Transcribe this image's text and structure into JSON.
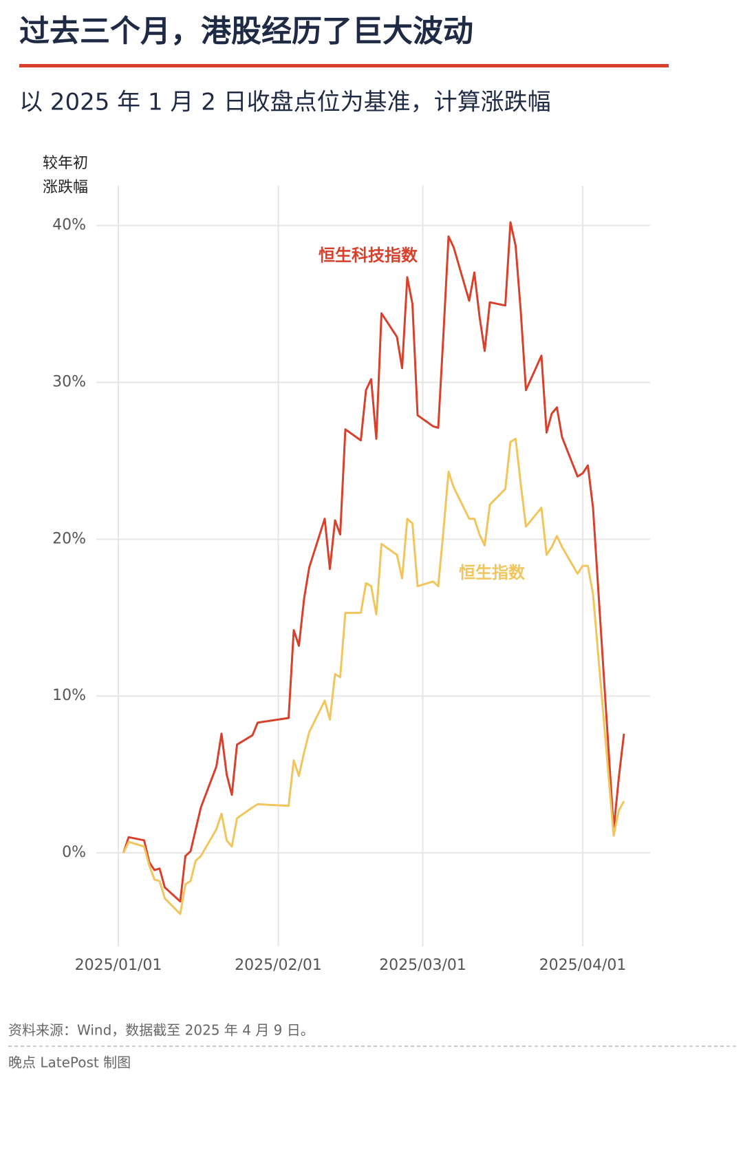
{
  "chart_data": {
    "type": "line",
    "title": "过去三个月，港股经历了巨大波动",
    "subtitle": "以 2025 年 1 月 2 日收盘点位为基准，计算涨跌幅",
    "y_label": [
      "较年初",
      "涨跌幅"
    ],
    "source": "资料来源：Wind，数据截至 2025 年 4 月 9 日。",
    "credit": "晚点 LatePost 制图",
    "x": [
      "2025/01/02",
      "2025/01/03",
      "2025/01/06",
      "2025/01/07",
      "2025/01/08",
      "2025/01/09",
      "2025/01/10",
      "2025/01/13",
      "2025/01/14",
      "2025/01/15",
      "2025/01/16",
      "2025/01/17",
      "2025/01/20",
      "2025/01/21",
      "2025/01/22",
      "2025/01/23",
      "2025/01/24",
      "2025/01/27",
      "2025/01/28",
      "2025/02/03",
      "2025/02/04",
      "2025/02/05",
      "2025/02/06",
      "2025/02/07",
      "2025/02/10",
      "2025/02/11",
      "2025/02/12",
      "2025/02/13",
      "2025/02/14",
      "2025/02/17",
      "2025/02/18",
      "2025/02/19",
      "2025/02/20",
      "2025/02/21",
      "2025/02/24",
      "2025/02/25",
      "2025/02/26",
      "2025/02/27",
      "2025/02/28",
      "2025/03/03",
      "2025/03/04",
      "2025/03/05",
      "2025/03/06",
      "2025/03/07",
      "2025/03/10",
      "2025/03/11",
      "2025/03/12",
      "2025/03/13",
      "2025/03/14",
      "2025/03/17",
      "2025/03/18",
      "2025/03/19",
      "2025/03/20",
      "2025/03/21",
      "2025/03/24",
      "2025/03/25",
      "2025/03/26",
      "2025/03/27",
      "2025/03/28",
      "2025/03/31",
      "2025/04/01",
      "2025/04/02",
      "2025/04/03",
      "2025/04/07",
      "2025/04/08",
      "2025/04/09"
    ],
    "series": [
      {
        "name": "恒生科技指数",
        "color": "#d9402b",
        "values": [
          0,
          1.0,
          0.8,
          -0.6,
          -1.1,
          -1.0,
          -2.2,
          -3.1,
          -0.2,
          0.1,
          1.5,
          2.9,
          5.5,
          7.6,
          5.0,
          3.7,
          6.9,
          7.5,
          8.3,
          8.6,
          14.2,
          13.2,
          16.2,
          18.2,
          21.3,
          18.1,
          21.2,
          20.3,
          27.0,
          26.3,
          29.5,
          30.2,
          26.4,
          34.4,
          32.9,
          30.9,
          36.7,
          35.0,
          27.9,
          27.2,
          27.1,
          33.0,
          39.3,
          38.6,
          35.2,
          37.0,
          34.2,
          32.0,
          35.1,
          34.9,
          40.2,
          38.7,
          34.5,
          29.5,
          31.7,
          26.8,
          28.0,
          28.4,
          26.5,
          24.0,
          24.2,
          24.7,
          22.0,
          1.5,
          4.8,
          7.6
        ]
      },
      {
        "name": "恒生指数",
        "color": "#f2c55c",
        "values": [
          0,
          0.7,
          0.4,
          -0.8,
          -1.7,
          -1.8,
          -2.9,
          -3.9,
          -2.0,
          -1.8,
          -0.5,
          -0.2,
          1.5,
          2.5,
          0.8,
          0.4,
          2.2,
          2.9,
          3.1,
          3.0,
          5.9,
          4.9,
          6.4,
          7.7,
          9.7,
          8.5,
          11.4,
          11.2,
          15.3,
          15.3,
          17.2,
          17.0,
          15.2,
          19.7,
          19.0,
          17.5,
          21.3,
          21.0,
          17.0,
          17.3,
          17.0,
          20.5,
          24.3,
          23.3,
          21.3,
          21.3,
          20.3,
          19.6,
          22.2,
          23.2,
          26.2,
          26.4,
          23.5,
          20.8,
          22.0,
          19.0,
          19.5,
          20.2,
          19.5,
          17.8,
          18.3,
          18.3,
          16.5,
          1.1,
          2.7,
          3.3
        ]
      }
    ],
    "xlim": [
      "2025/01/01",
      "2025/04/09"
    ],
    "xticks": [
      "2025/01/01",
      "2025/02/01",
      "2025/03/01",
      "2025/04/01"
    ],
    "ylim": [
      -5,
      42
    ],
    "yticks": [
      {
        "value": 0,
        "label": "0%"
      },
      {
        "value": 10,
        "label": "10%"
      },
      {
        "value": 20,
        "label": "20%"
      },
      {
        "value": 30,
        "label": "30%"
      },
      {
        "value": 40,
        "label": "40%"
      }
    ],
    "grid": true
  }
}
